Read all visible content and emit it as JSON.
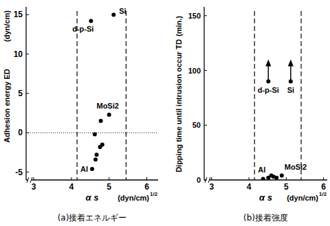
{
  "chart_data": [
    {
      "type": "scatter",
      "title": "(a)接着エネルギー",
      "y_label": "Adhesion energy  ED",
      "y_unit": "(dyn/cm)",
      "x_label": "α s",
      "x_unit": "(dyn/cm)",
      "x_unit_exp": "1/2",
      "xlim": [
        2.8,
        6.3
      ],
      "xticks": [
        3,
        4,
        5,
        6
      ],
      "ylim": [
        -6,
        16
      ],
      "yticks": [
        -5,
        0,
        5,
        10,
        15
      ],
      "reference_lines_x": [
        4.15,
        5.45
      ],
      "reference_lines_y": [
        0
      ],
      "series": [
        {
          "x": [
            4.52,
            5.12,
            5.0,
            4.78,
            4.62,
            4.82,
            4.76,
            4.67,
            4.64,
            4.55
          ],
          "values": [
            14.2,
            15.0,
            2.3,
            1.5,
            -0.2,
            -1.5,
            -1.8,
            -2.8,
            -3.4,
            -4.6
          ],
          "point_labels": [
            "d-p-Si",
            "Si",
            "MoSi2",
            null,
            null,
            null,
            null,
            null,
            null,
            "Al"
          ],
          "marker": "circle",
          "color": "#000000"
        }
      ]
    },
    {
      "type": "scatter",
      "title": "(b)接着強度",
      "y_label": "Dipping time until intrusion occur  TD",
      "y_unit": "(min.)",
      "x_label": "α s",
      "x_unit": "(dyn/cm)",
      "x_unit_exp": "1/2",
      "xlim": [
        2.8,
        6.1
      ],
      "xticks": [
        3,
        4,
        5,
        6
      ],
      "ylim": [
        0,
        158
      ],
      "yticks": [
        0,
        50,
        100,
        150
      ],
      "reference_lines_x": [
        4.15,
        5.4
      ],
      "series": [
        {
          "x": [
            4.38,
            4.52,
            4.6,
            4.66,
            4.74,
            4.88
          ],
          "values": [
            1,
            2,
            4,
            3,
            2,
            4
          ],
          "point_labels": [
            "Al",
            null,
            null,
            null,
            null,
            "MoSi2"
          ],
          "marker": "circle",
          "color": "#000000"
        },
        {
          "x": [
            4.52,
            5.12
          ],
          "values": [
            90,
            90
          ],
          "point_labels": [
            "d-p-Si",
            "Si"
          ],
          "marker": "arrow-up",
          "color": "#000000"
        }
      ]
    }
  ]
}
